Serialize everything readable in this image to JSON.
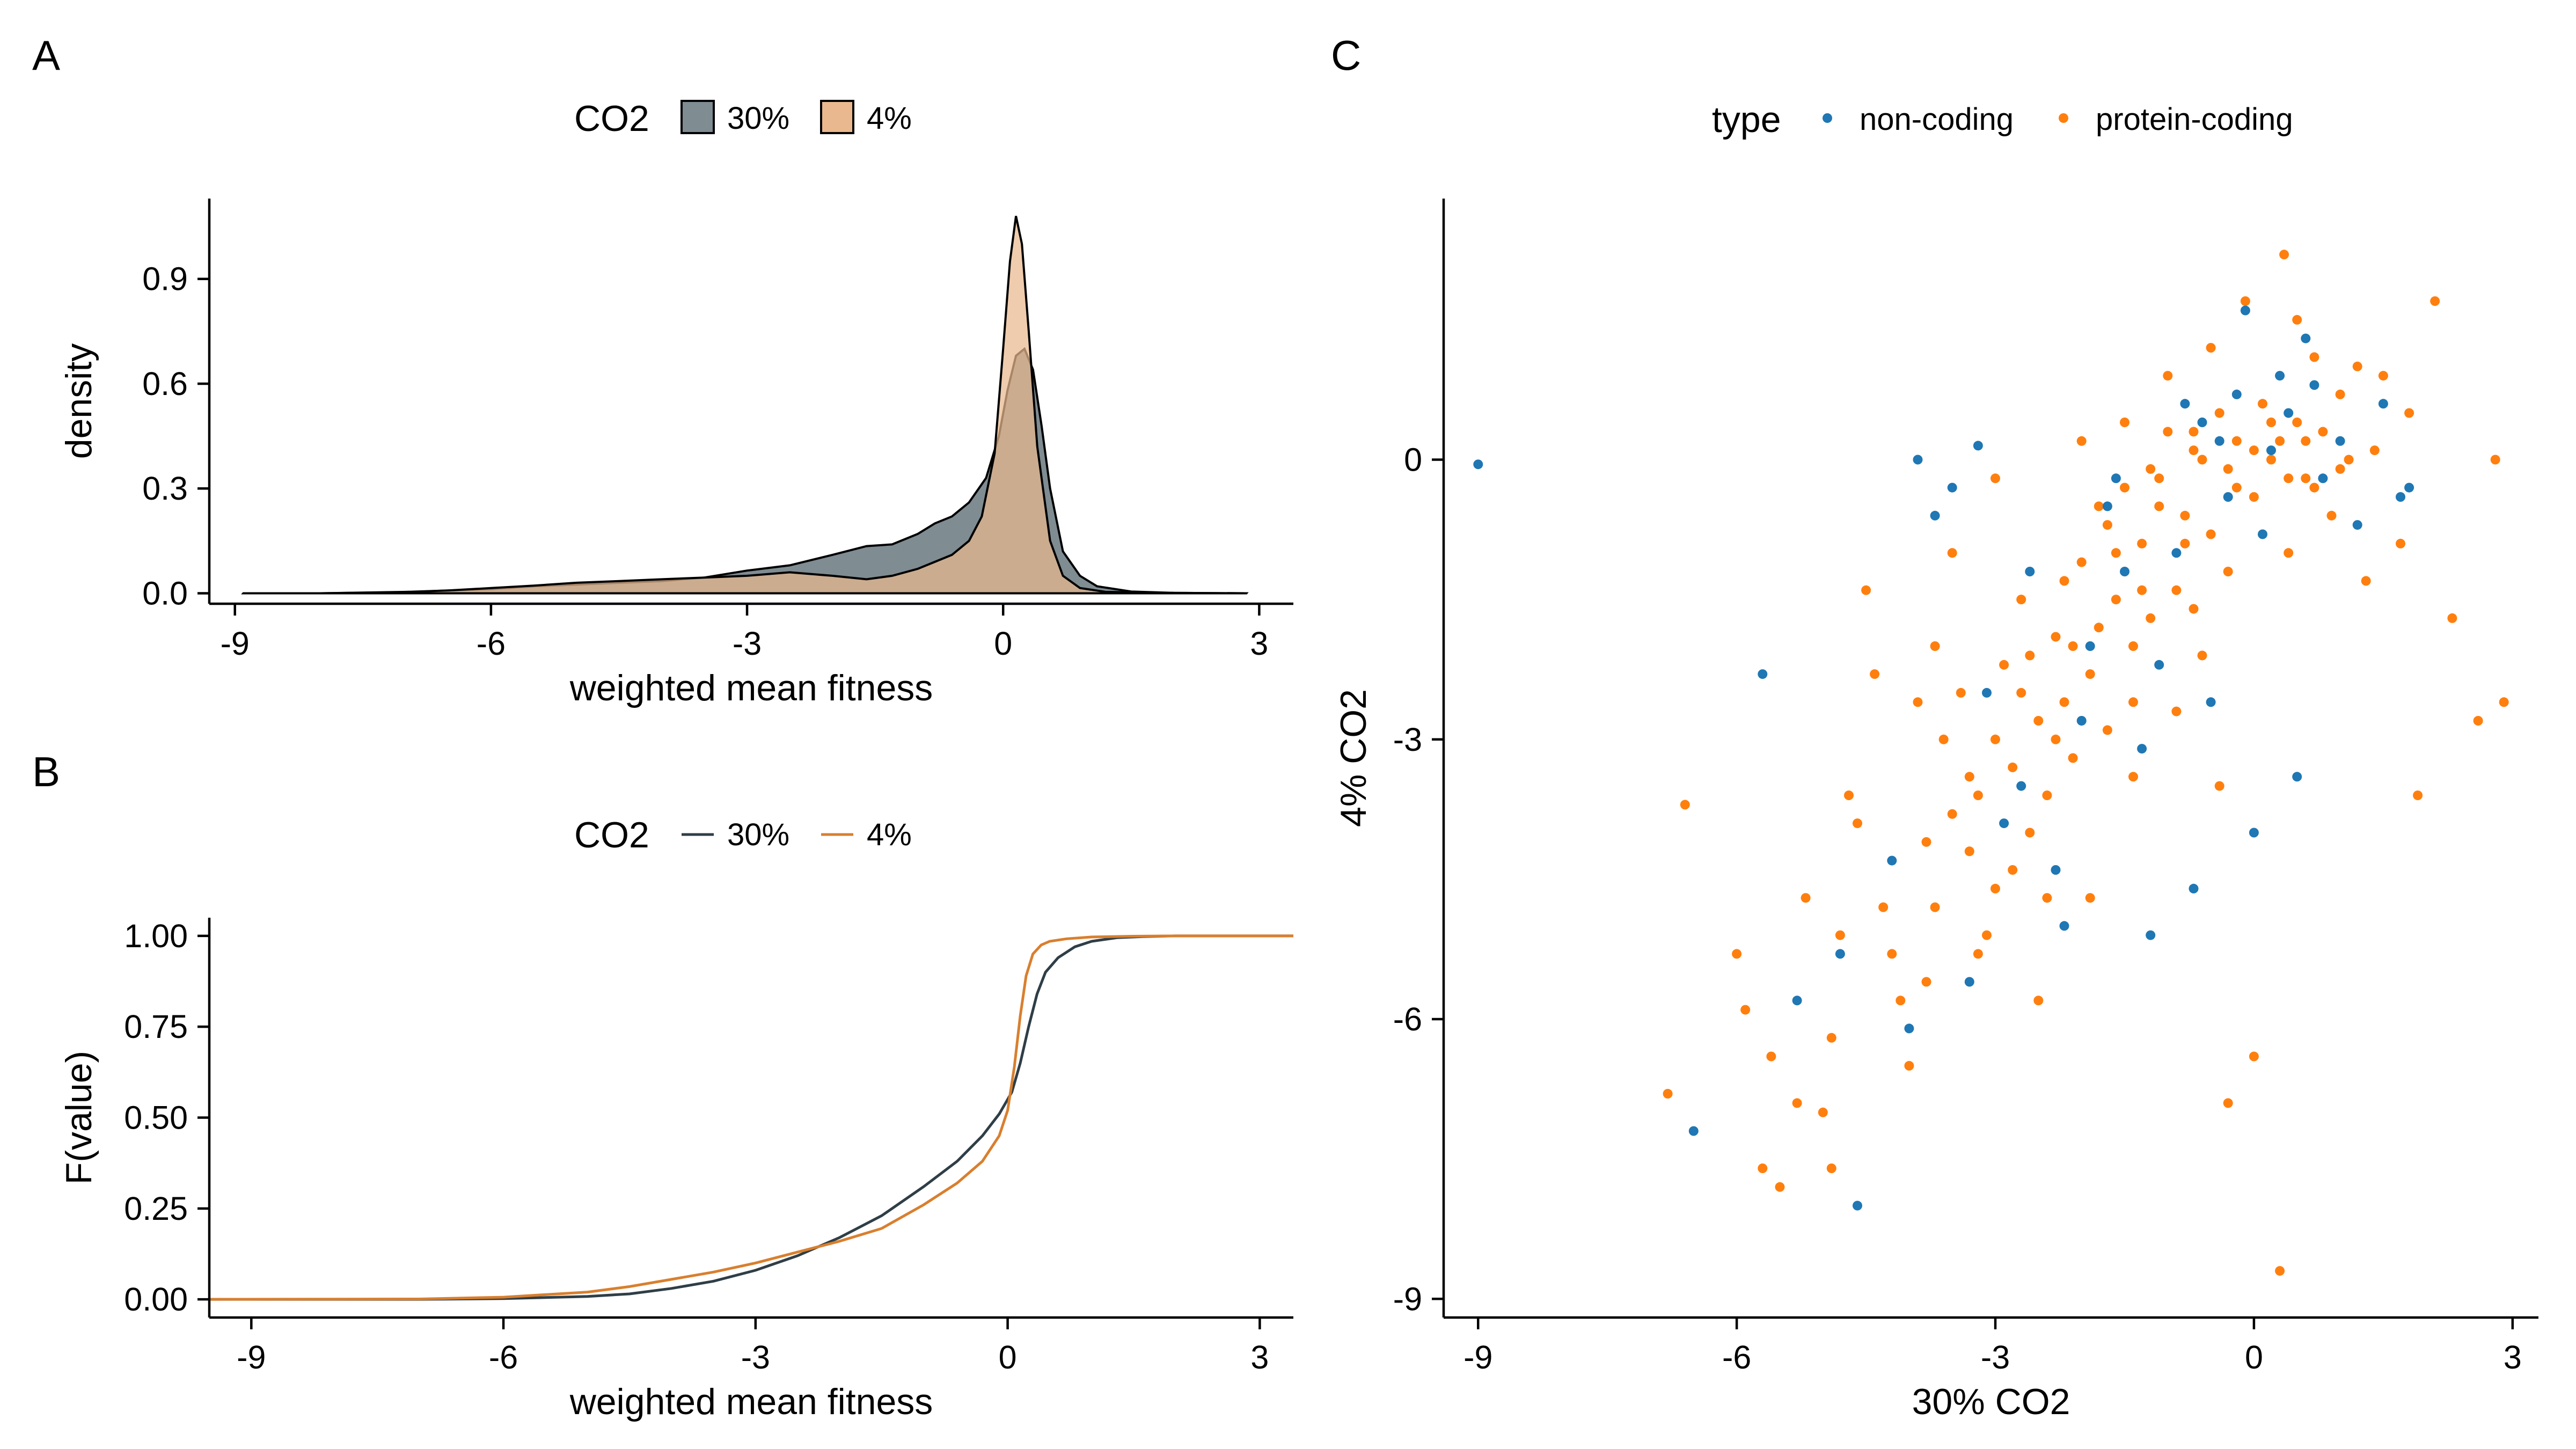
{
  "figure": {
    "panels": [
      {
        "letter": "A"
      },
      {
        "letter": "B"
      },
      {
        "letter": "C"
      }
    ]
  },
  "chart_data": [
    {
      "panel": "A",
      "type": "area",
      "xlabel": "weighted mean fitness",
      "ylabel": "density",
      "xlim": [
        -9.3,
        3.4
      ],
      "ylim": [
        -0.03,
        1.13
      ],
      "x_ticks": [
        -9,
        -6,
        -3,
        0,
        3
      ],
      "x_tick_labels": [
        "-9",
        "-6",
        "-3",
        "0",
        "3"
      ],
      "y_ticks": [
        0.0,
        0.3,
        0.6,
        0.9
      ],
      "y_tick_labels": [
        "0.0",
        "0.3",
        "0.6",
        "0.9"
      ],
      "grid": false,
      "legend": {
        "title": "CO2",
        "position": "top",
        "entries": [
          "30%",
          "4%"
        ]
      },
      "series": [
        {
          "name": "30%",
          "fill": "#7f8c92",
          "x": [
            -8.9,
            -8,
            -7,
            -6.5,
            -6,
            -5.5,
            -5,
            -4.5,
            -4,
            -3.5,
            -3,
            -2.5,
            -2,
            -1.6,
            -1.3,
            -1,
            -0.8,
            -0.6,
            -0.4,
            -0.2,
            -0.05,
            0.05,
            0.15,
            0.25,
            0.35,
            0.45,
            0.55,
            0.7,
            0.9,
            1.1,
            1.5,
            2,
            2.85
          ],
          "y": [
            0.0,
            0.0,
            0.003,
            0.008,
            0.012,
            0.02,
            0.025,
            0.03,
            0.035,
            0.045,
            0.065,
            0.08,
            0.11,
            0.135,
            0.14,
            0.17,
            0.2,
            0.22,
            0.26,
            0.33,
            0.45,
            0.58,
            0.68,
            0.7,
            0.64,
            0.48,
            0.3,
            0.12,
            0.05,
            0.02,
            0.005,
            0.001,
            0.0
          ]
        },
        {
          "name": "4%",
          "fill": "#e9b88e",
          "x": [
            -8.9,
            -8,
            -7,
            -6.5,
            -6,
            -5.5,
            -5,
            -4.5,
            -4,
            -3.5,
            -3,
            -2.5,
            -2,
            -1.6,
            -1.3,
            -1,
            -0.8,
            -0.6,
            -0.4,
            -0.25,
            -0.1,
            0.0,
            0.08,
            0.15,
            0.22,
            0.3,
            0.4,
            0.55,
            0.7,
            0.9,
            1.2,
            2,
            2.85
          ],
          "y": [
            0.0,
            0.0,
            0.004,
            0.008,
            0.015,
            0.022,
            0.03,
            0.035,
            0.04,
            0.045,
            0.05,
            0.06,
            0.05,
            0.04,
            0.05,
            0.07,
            0.09,
            0.11,
            0.15,
            0.22,
            0.4,
            0.7,
            0.95,
            1.08,
            1.0,
            0.75,
            0.42,
            0.15,
            0.05,
            0.015,
            0.004,
            0.001,
            0.0
          ]
        }
      ]
    },
    {
      "panel": "B",
      "type": "line",
      "xlabel": "weighted mean fitness",
      "ylabel": "F(value)",
      "xlim": [
        -9.5,
        3.4
      ],
      "ylim": [
        -0.05,
        1.05
      ],
      "x_ticks": [
        -9,
        -6,
        -3,
        0,
        3
      ],
      "x_tick_labels": [
        "-9",
        "-6",
        "-3",
        "0",
        "3"
      ],
      "y_ticks": [
        0.0,
        0.25,
        0.5,
        0.75,
        1.0
      ],
      "y_tick_labels": [
        "0.00",
        "0.25",
        "0.50",
        "0.75",
        "1.00"
      ],
      "grid": false,
      "legend": {
        "title": "CO2",
        "position": "top",
        "entries": [
          "30%",
          "4%"
        ]
      },
      "series": [
        {
          "name": "30%",
          "color": "#2f3e46",
          "x": [
            -9.5,
            -7,
            -6,
            -5,
            -4.5,
            -4,
            -3.5,
            -3,
            -2.5,
            -2,
            -1.5,
            -1,
            -0.6,
            -0.3,
            -0.1,
            0.05,
            0.15,
            0.25,
            0.35,
            0.45,
            0.6,
            0.8,
            1.0,
            1.3,
            1.6,
            2,
            3.4
          ],
          "y": [
            0.0,
            0.0,
            0.002,
            0.008,
            0.015,
            0.03,
            0.05,
            0.08,
            0.12,
            0.17,
            0.23,
            0.31,
            0.38,
            0.45,
            0.51,
            0.57,
            0.65,
            0.75,
            0.84,
            0.9,
            0.94,
            0.97,
            0.985,
            0.995,
            0.998,
            1.0,
            1.0
          ]
        },
        {
          "name": "4%",
          "color": "#d97f2e",
          "x": [
            -9.5,
            -7,
            -6,
            -5,
            -4.5,
            -4,
            -3.5,
            -3,
            -2.5,
            -2,
            -1.5,
            -1,
            -0.6,
            -0.3,
            -0.1,
            0.0,
            0.08,
            0.15,
            0.22,
            0.3,
            0.4,
            0.5,
            0.7,
            1.0,
            1.5,
            2,
            3.4
          ],
          "y": [
            0.0,
            0.001,
            0.006,
            0.02,
            0.035,
            0.055,
            0.075,
            0.1,
            0.13,
            0.16,
            0.195,
            0.26,
            0.32,
            0.38,
            0.45,
            0.52,
            0.64,
            0.78,
            0.89,
            0.95,
            0.975,
            0.985,
            0.992,
            0.997,
            0.999,
            1.0,
            1.0
          ]
        }
      ]
    },
    {
      "panel": "C",
      "type": "scatter",
      "xlabel": "30% CO2",
      "ylabel": "4% CO2",
      "xlim": [
        -9.4,
        3.3
      ],
      "ylim": [
        -9.2,
        2.8
      ],
      "x_ticks": [
        -9,
        -6,
        -3,
        0,
        3
      ],
      "x_tick_labels": [
        "-9",
        "-6",
        "-3",
        "0",
        "3"
      ],
      "y_ticks": [
        -9,
        -6,
        -3,
        0
      ],
      "y_tick_labels": [
        "-9",
        "-6",
        "-3",
        "0"
      ],
      "grid": false,
      "legend": {
        "title": "type",
        "position": "top",
        "entries": [
          "non-coding",
          "protein-coding"
        ]
      },
      "series": [
        {
          "name": "non-coding",
          "color": "#1f77b4",
          "points": [
            [
              -9.0,
              -0.05
            ],
            [
              -6.5,
              -7.2
            ],
            [
              -5.7,
              -2.3
            ],
            [
              -4.6,
              -8.0
            ],
            [
              -5.3,
              -5.8
            ],
            [
              -4.8,
              -5.3
            ],
            [
              -4.0,
              -6.1
            ],
            [
              -3.7,
              -0.6
            ],
            [
              -3.5,
              -0.3
            ],
            [
              -3.2,
              0.15
            ],
            [
              -3.1,
              -2.5
            ],
            [
              -2.9,
              -3.9
            ],
            [
              -2.6,
              -1.2
            ],
            [
              -2.3,
              -4.4
            ],
            [
              -2.0,
              -2.8
            ],
            [
              -1.7,
              -0.5
            ],
            [
              -1.5,
              -1.2
            ],
            [
              -1.3,
              -3.1
            ],
            [
              -1.1,
              -2.2
            ],
            [
              -0.9,
              -1.0
            ],
            [
              -0.7,
              -4.6
            ],
            [
              -0.5,
              -2.6
            ],
            [
              -0.3,
              -0.4
            ],
            [
              -0.2,
              0.7
            ],
            [
              -0.1,
              1.6
            ],
            [
              0.0,
              -4.0
            ],
            [
              0.1,
              -0.8
            ],
            [
              0.3,
              0.9
            ],
            [
              0.5,
              -3.4
            ],
            [
              0.6,
              1.3
            ],
            [
              0.8,
              -0.2
            ],
            [
              1.0,
              0.2
            ],
            [
              1.2,
              -0.7
            ],
            [
              1.5,
              0.6
            ],
            [
              1.7,
              -0.4
            ],
            [
              -3.9,
              0.0
            ],
            [
              -4.2,
              -4.3
            ],
            [
              -2.2,
              -5.0
            ],
            [
              -1.2,
              -5.1
            ],
            [
              -0.6,
              0.4
            ],
            [
              0.2,
              0.1
            ],
            [
              0.4,
              0.5
            ],
            [
              -0.4,
              0.2
            ],
            [
              -0.8,
              0.6
            ],
            [
              0.7,
              0.8
            ],
            [
              -1.6,
              -0.2
            ],
            [
              1.8,
              -0.3
            ],
            [
              -3.3,
              -5.6
            ],
            [
              -2.7,
              -3.5
            ],
            [
              -1.9,
              -2.0
            ]
          ]
        },
        {
          "name": "protein-coding",
          "color": "#ff7f0e",
          "points": [
            [
              -6.8,
              -6.8
            ],
            [
              -6.6,
              -3.7
            ],
            [
              -6.0,
              -5.3
            ],
            [
              -5.9,
              -5.9
            ],
            [
              -5.7,
              -7.6
            ],
            [
              -5.5,
              -7.8
            ],
            [
              -5.3,
              -6.9
            ],
            [
              -5.0,
              -7.0
            ],
            [
              -4.9,
              -7.6
            ],
            [
              -4.8,
              -5.1
            ],
            [
              -4.7,
              -3.6
            ],
            [
              -4.5,
              -1.4
            ],
            [
              -4.4,
              -2.3
            ],
            [
              -4.2,
              -5.3
            ],
            [
              -4.0,
              -6.5
            ],
            [
              -3.8,
              -5.6
            ],
            [
              -3.7,
              -4.8
            ],
            [
              -3.5,
              -1.0
            ],
            [
              -3.4,
              -2.5
            ],
            [
              -3.3,
              -4.2
            ],
            [
              -3.2,
              -3.6
            ],
            [
              -3.1,
              -5.1
            ],
            [
              -3.0,
              -4.6
            ],
            [
              -2.9,
              -2.2
            ],
            [
              -2.8,
              -3.3
            ],
            [
              -2.7,
              -1.5
            ],
            [
              -2.6,
              -4.0
            ],
            [
              -2.5,
              -2.8
            ],
            [
              -2.4,
              -3.6
            ],
            [
              -2.3,
              -1.9
            ],
            [
              -2.2,
              -2.6
            ],
            [
              -2.1,
              -3.2
            ],
            [
              -2.0,
              -1.1
            ],
            [
              -1.9,
              -2.3
            ],
            [
              -1.8,
              -0.5
            ],
            [
              -1.7,
              -2.9
            ],
            [
              -1.6,
              -1.5
            ],
            [
              -1.5,
              -0.3
            ],
            [
              -1.4,
              -2.0
            ],
            [
              -1.3,
              -0.9
            ],
            [
              -1.2,
              -1.7
            ],
            [
              -1.1,
              -0.2
            ],
            [
              -1.0,
              0.3
            ],
            [
              -0.9,
              -1.4
            ],
            [
              -0.8,
              -0.6
            ],
            [
              -0.7,
              0.1
            ],
            [
              -0.6,
              -2.1
            ],
            [
              -0.5,
              -0.8
            ],
            [
              -0.4,
              0.5
            ],
            [
              -0.3,
              -1.2
            ],
            [
              -0.2,
              0.2
            ],
            [
              -0.1,
              1.7
            ],
            [
              0.0,
              -0.4
            ],
            [
              0.1,
              0.6
            ],
            [
              0.2,
              0.0
            ],
            [
              0.3,
              -8.7
            ],
            [
              0.35,
              2.2
            ],
            [
              0.4,
              -1.0
            ],
            [
              0.5,
              0.4
            ],
            [
              0.6,
              -0.2
            ],
            [
              0.7,
              1.1
            ],
            [
              0.8,
              0.3
            ],
            [
              0.9,
              -0.6
            ],
            [
              1.0,
              0.7
            ],
            [
              1.1,
              0.0
            ],
            [
              1.3,
              -1.3
            ],
            [
              1.5,
              0.9
            ],
            [
              1.7,
              -0.9
            ],
            [
              1.9,
              -3.6
            ],
            [
              2.1,
              1.7
            ],
            [
              2.3,
              -1.7
            ],
            [
              2.6,
              -2.8
            ],
            [
              2.9,
              -2.6
            ],
            [
              2.8,
              0.0
            ],
            [
              -3.9,
              -2.6
            ],
            [
              -3.6,
              -3.0
            ],
            [
              -2.5,
              -5.8
            ],
            [
              -1.9,
              -4.7
            ],
            [
              -1.4,
              -3.4
            ],
            [
              -0.9,
              -2.7
            ],
            [
              -0.4,
              -3.5
            ],
            [
              0.0,
              -6.4
            ],
            [
              -0.3,
              -6.9
            ],
            [
              -4.6,
              -3.9
            ],
            [
              -5.2,
              -4.7
            ],
            [
              -5.6,
              -6.4
            ],
            [
              -3.0,
              -0.2
            ],
            [
              -2.0,
              0.2
            ],
            [
              -1.5,
              0.4
            ],
            [
              -1.0,
              0.9
            ],
            [
              -0.5,
              1.2
            ],
            [
              0.5,
              1.5
            ],
            [
              1.2,
              1.0
            ],
            [
              -3.7,
              -2.0
            ],
            [
              -3.3,
              -3.4
            ],
            [
              -2.7,
              -2.5
            ],
            [
              -2.3,
              -3.0
            ],
            [
              -1.8,
              -1.8
            ],
            [
              -1.3,
              -1.4
            ],
            [
              -0.8,
              -0.9
            ],
            [
              -0.3,
              -0.1
            ],
            [
              0.2,
              0.4
            ],
            [
              0.6,
              0.2
            ],
            [
              -2.8,
              -4.4
            ],
            [
              -2.1,
              -2.0
            ],
            [
              -1.6,
              -1.0
            ],
            [
              -1.1,
              -0.5
            ],
            [
              -0.6,
              0.0
            ],
            [
              -0.2,
              -0.3
            ],
            [
              0.4,
              -0.2
            ],
            [
              1.4,
              0.1
            ],
            [
              1.8,
              0.5
            ],
            [
              -4.3,
              -4.8
            ],
            [
              -3.8,
              -4.1
            ],
            [
              -3.5,
              -3.8
            ],
            [
              -3.0,
              -3.0
            ],
            [
              -2.6,
              -2.1
            ],
            [
              -2.2,
              -1.3
            ],
            [
              -1.7,
              -0.7
            ],
            [
              -1.2,
              -0.1
            ],
            [
              -0.7,
              0.3
            ],
            [
              0.0,
              0.1
            ],
            [
              0.3,
              0.2
            ],
            [
              0.7,
              -0.3
            ],
            [
              1.0,
              -0.1
            ],
            [
              -0.7,
              -1.6
            ],
            [
              -1.4,
              -2.6
            ],
            [
              -2.4,
              -4.7
            ],
            [
              -3.2,
              -5.3
            ],
            [
              -4.1,
              -5.8
            ],
            [
              -4.9,
              -6.2
            ]
          ]
        }
      ]
    }
  ]
}
